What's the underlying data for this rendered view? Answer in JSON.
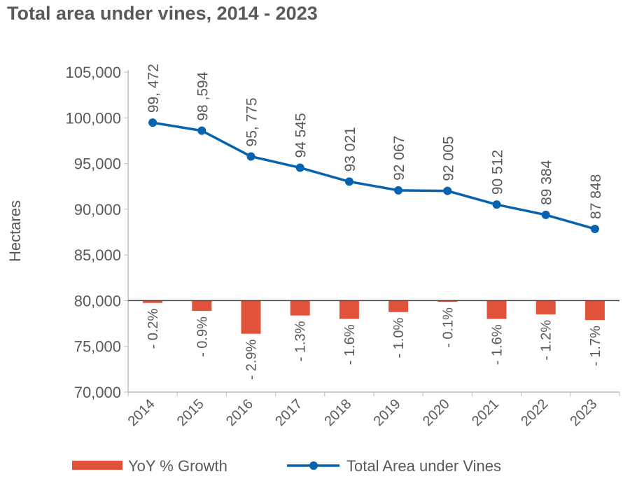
{
  "chart_data": {
    "type": "line+bar",
    "title": "Total area under vines, 2014 - 2023",
    "ylabel": "Hectares",
    "ylim": [
      70000,
      105000
    ],
    "yticks": [
      "70,000",
      "75,000",
      "80,000",
      "85,000",
      "90,000",
      "95,000",
      "100,000",
      "105,000"
    ],
    "ytick_values": [
      70000,
      75000,
      80000,
      85000,
      90000,
      95000,
      100000,
      105000
    ],
    "categories": [
      "2014",
      "2015",
      "2016",
      "2017",
      "2018",
      "2019",
      "2020",
      "2021",
      "2022",
      "2023"
    ],
    "grid": false,
    "legend_position": "bottom",
    "series": [
      {
        "name": "Total Area under Vines",
        "type": "line",
        "color": "#0563B0",
        "values": [
          99472,
          98594,
          95775,
          94545,
          93021,
          92067,
          92005,
          90512,
          89384,
          87848
        ],
        "labels": [
          "99, 472",
          "98 ,594",
          "95, 775",
          "94 545",
          "93 021",
          "92 067",
          "92 005",
          "90 512",
          "89 384",
          "87 848"
        ]
      },
      {
        "name": "YoY % Growth",
        "type": "bar",
        "color": "#E0533A",
        "values": [
          -0.2,
          -0.9,
          -2.9,
          -1.3,
          -1.6,
          -1.0,
          -0.1,
          -1.6,
          -1.2,
          -1.7
        ],
        "labels": [
          "- 0.2%",
          "- 0.9%",
          "- 2.9%",
          "- 1.3%",
          "- 1.6%",
          "- 1.0%",
          "- 0.1%",
          "- 1.6%",
          "- 1.2%",
          "- 1.7%"
        ]
      }
    ]
  }
}
